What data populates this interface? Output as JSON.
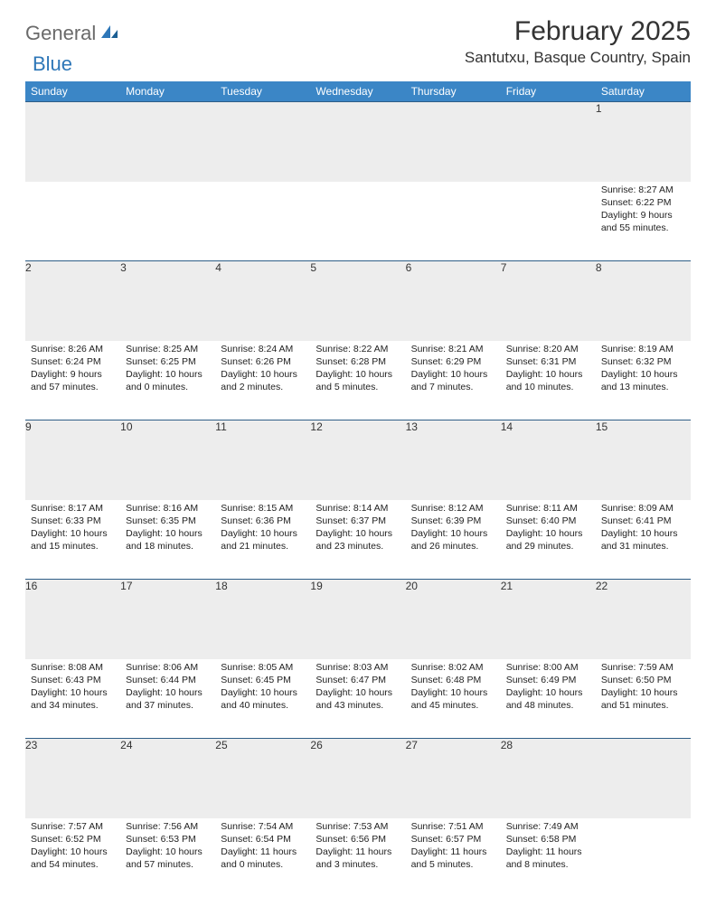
{
  "brand": {
    "word1": "General",
    "word2": "Blue"
  },
  "title": "February 2025",
  "location": "Santutxu, Basque Country, Spain",
  "colors": {
    "header_bg": "#3b86c6",
    "header_text": "#ffffff",
    "row_divider": "#2f5e87",
    "daynum_bg": "#ededed",
    "logo_gray": "#6a6a6a",
    "logo_blue": "#2e77b8",
    "text": "#222222",
    "page_bg": "#ffffff"
  },
  "day_headers": [
    "Sunday",
    "Monday",
    "Tuesday",
    "Wednesday",
    "Thursday",
    "Friday",
    "Saturday"
  ],
  "weeks": [
    [
      null,
      null,
      null,
      null,
      null,
      null,
      {
        "n": "1",
        "sr": "8:27 AM",
        "ss": "6:22 PM",
        "dl": "9 hours and 55 minutes."
      }
    ],
    [
      {
        "n": "2",
        "sr": "8:26 AM",
        "ss": "6:24 PM",
        "dl": "9 hours and 57 minutes."
      },
      {
        "n": "3",
        "sr": "8:25 AM",
        "ss": "6:25 PM",
        "dl": "10 hours and 0 minutes."
      },
      {
        "n": "4",
        "sr": "8:24 AM",
        "ss": "6:26 PM",
        "dl": "10 hours and 2 minutes."
      },
      {
        "n": "5",
        "sr": "8:22 AM",
        "ss": "6:28 PM",
        "dl": "10 hours and 5 minutes."
      },
      {
        "n": "6",
        "sr": "8:21 AM",
        "ss": "6:29 PM",
        "dl": "10 hours and 7 minutes."
      },
      {
        "n": "7",
        "sr": "8:20 AM",
        "ss": "6:31 PM",
        "dl": "10 hours and 10 minutes."
      },
      {
        "n": "8",
        "sr": "8:19 AM",
        "ss": "6:32 PM",
        "dl": "10 hours and 13 minutes."
      }
    ],
    [
      {
        "n": "9",
        "sr": "8:17 AM",
        "ss": "6:33 PM",
        "dl": "10 hours and 15 minutes."
      },
      {
        "n": "10",
        "sr": "8:16 AM",
        "ss": "6:35 PM",
        "dl": "10 hours and 18 minutes."
      },
      {
        "n": "11",
        "sr": "8:15 AM",
        "ss": "6:36 PM",
        "dl": "10 hours and 21 minutes."
      },
      {
        "n": "12",
        "sr": "8:14 AM",
        "ss": "6:37 PM",
        "dl": "10 hours and 23 minutes."
      },
      {
        "n": "13",
        "sr": "8:12 AM",
        "ss": "6:39 PM",
        "dl": "10 hours and 26 minutes."
      },
      {
        "n": "14",
        "sr": "8:11 AM",
        "ss": "6:40 PM",
        "dl": "10 hours and 29 minutes."
      },
      {
        "n": "15",
        "sr": "8:09 AM",
        "ss": "6:41 PM",
        "dl": "10 hours and 31 minutes."
      }
    ],
    [
      {
        "n": "16",
        "sr": "8:08 AM",
        "ss": "6:43 PM",
        "dl": "10 hours and 34 minutes."
      },
      {
        "n": "17",
        "sr": "8:06 AM",
        "ss": "6:44 PM",
        "dl": "10 hours and 37 minutes."
      },
      {
        "n": "18",
        "sr": "8:05 AM",
        "ss": "6:45 PM",
        "dl": "10 hours and 40 minutes."
      },
      {
        "n": "19",
        "sr": "8:03 AM",
        "ss": "6:47 PM",
        "dl": "10 hours and 43 minutes."
      },
      {
        "n": "20",
        "sr": "8:02 AM",
        "ss": "6:48 PM",
        "dl": "10 hours and 45 minutes."
      },
      {
        "n": "21",
        "sr": "8:00 AM",
        "ss": "6:49 PM",
        "dl": "10 hours and 48 minutes."
      },
      {
        "n": "22",
        "sr": "7:59 AM",
        "ss": "6:50 PM",
        "dl": "10 hours and 51 minutes."
      }
    ],
    [
      {
        "n": "23",
        "sr": "7:57 AM",
        "ss": "6:52 PM",
        "dl": "10 hours and 54 minutes."
      },
      {
        "n": "24",
        "sr": "7:56 AM",
        "ss": "6:53 PM",
        "dl": "10 hours and 57 minutes."
      },
      {
        "n": "25",
        "sr": "7:54 AM",
        "ss": "6:54 PM",
        "dl": "11 hours and 0 minutes."
      },
      {
        "n": "26",
        "sr": "7:53 AM",
        "ss": "6:56 PM",
        "dl": "11 hours and 3 minutes."
      },
      {
        "n": "27",
        "sr": "7:51 AM",
        "ss": "6:57 PM",
        "dl": "11 hours and 5 minutes."
      },
      {
        "n": "28",
        "sr": "7:49 AM",
        "ss": "6:58 PM",
        "dl": "11 hours and 8 minutes."
      },
      null
    ]
  ],
  "labels": {
    "sunrise": "Sunrise: ",
    "sunset": "Sunset: ",
    "daylight": "Daylight: "
  }
}
